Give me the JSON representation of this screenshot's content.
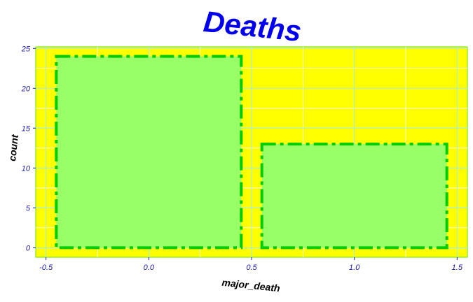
{
  "chart_data": {
    "type": "bar",
    "title": "Deaths",
    "xlabel": "major_death",
    "ylabel": "count",
    "bars": [
      {
        "x": 0,
        "value": 24
      },
      {
        "x": 1,
        "value": 13
      }
    ],
    "bar_width": 0.9,
    "xlim": [
      -0.55,
      1.55
    ],
    "ylim": [
      -1.2,
      25.2
    ],
    "x_ticks": [
      "-0.5",
      "0.0",
      "0.5",
      "1.0",
      "1.5"
    ],
    "x_tick_values": [
      -0.5,
      0.0,
      0.5,
      1.0,
      1.5
    ],
    "y_ticks": [
      "0",
      "5",
      "10",
      "15",
      "20",
      "25"
    ],
    "y_tick_values": [
      0,
      5,
      10,
      15,
      20,
      25
    ],
    "grid": true,
    "colors": {
      "panel": "#ffff00",
      "bar_fill": "#99ff66",
      "bar_outline": "#00cc00",
      "grid_major": "#9de8ff",
      "grid_minor": "#ffffff",
      "panel_border": "#66dd00",
      "title": "#0000ee",
      "ticks": "#1a1aa6"
    }
  }
}
